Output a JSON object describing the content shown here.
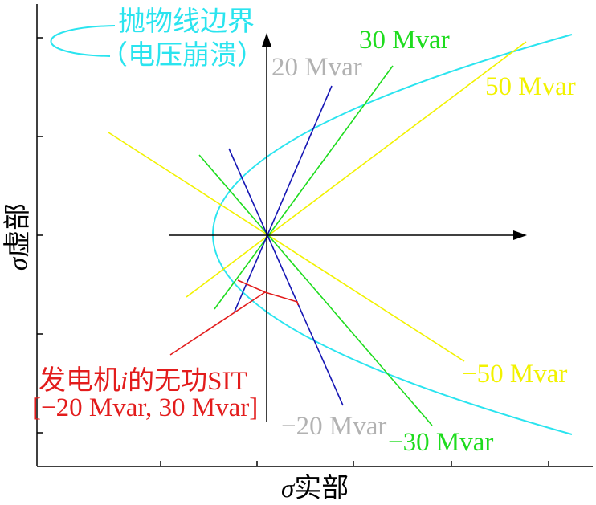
{
  "legend": {
    "line1": "抛物线边界",
    "line2": "（电压崩溃）",
    "color": "#2ae4ef"
  },
  "axes": {
    "x_label": {
      "symbol": "σ",
      "text": "实部"
    },
    "y_label": {
      "symbol": "σ",
      "text": "虚部"
    }
  },
  "lines": [
    {
      "label": "20 Mvar",
      "color": "#1616b4",
      "label_color": "#b2b2b2"
    },
    {
      "label": "−20 Mvar",
      "color": "#1616b4",
      "label_color": "#b2b2b2"
    },
    {
      "label": "30 Mvar",
      "color": "#1edc1e",
      "label_color": "#1edc1e"
    },
    {
      "label": "−30 Mvar",
      "color": "#1edc1e",
      "label_color": "#1edc1e"
    },
    {
      "label": "50 Mvar",
      "color": "#f2f200",
      "label_color": "#f2f200"
    },
    {
      "label": "−50 Mvar",
      "color": "#f2f200",
      "label_color": "#f2f200"
    }
  ],
  "annotation": {
    "line1": {
      "prefix": "发电机",
      "var": "i",
      "suffix": "的无功SIT"
    },
    "line2": "[−20 Mvar, 30 Mvar]",
    "color": "#e31c1c"
  }
}
